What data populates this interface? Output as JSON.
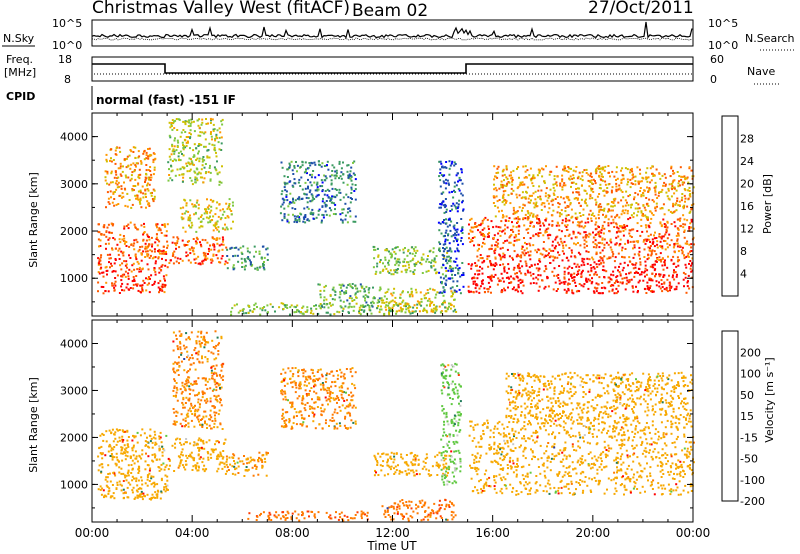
{
  "header": {
    "title": "Christmas Valley West (fitACF)",
    "beam": "Beam 02",
    "date": "27/Oct/2011"
  },
  "top_panels": {
    "nsky_label": "N.Sky",
    "nsky_ticks": [
      "10^5",
      "10^0"
    ],
    "nsearch_label": "N.Search",
    "nsearch_ticks": [
      "10^5",
      "10^0"
    ],
    "freq_label_1": "Freq.",
    "freq_label_2": "[MHz]",
    "freq_ticks": [
      "18",
      "8"
    ],
    "nave_label": "Nave",
    "nave_ticks": [
      "60",
      "0"
    ],
    "cpid_label": "CPID",
    "mode_text": "normal (fast) -151 IF"
  },
  "chart_data": [
    {
      "type": "heatmap",
      "name": "power",
      "ylabel": "Slant Range [km]",
      "ylim": [
        200,
        4500
      ],
      "y_ticks": [
        "1000",
        "2000",
        "3000",
        "4000"
      ],
      "colorbar_label": "Power [dB]",
      "colorbar_ticks": [
        "28",
        "24",
        "20",
        "16",
        "12",
        "8",
        "4"
      ],
      "colorbar_colors": [
        "#ff0000",
        "#ff5a00",
        "#ff9a00",
        "#cfc000",
        "#7ec840",
        "#3a9a60",
        "#1d4fa8",
        "#0000ff"
      ],
      "blobs": [
        {
          "x": [
            0.2,
            3.0
          ],
          "y": [
            700,
            1300
          ],
          "v": 28
        },
        {
          "x": [
            0.2,
            3.0
          ],
          "y": [
            1300,
            2200
          ],
          "v": 26
        },
        {
          "x": [
            0.5,
            2.5
          ],
          "y": [
            2500,
            3800
          ],
          "v": 22
        },
        {
          "x": [
            3.0,
            5.4
          ],
          "y": [
            1300,
            1900
          ],
          "v": 26
        },
        {
          "x": [
            3.5,
            5.6
          ],
          "y": [
            2000,
            2700
          ],
          "v": 18
        },
        {
          "x": [
            3.0,
            5.2
          ],
          "y": [
            3000,
            4400
          ],
          "v": 16
        },
        {
          "x": [
            5.3,
            7.0
          ],
          "y": [
            1200,
            1700
          ],
          "v": 10
        },
        {
          "x": [
            7.5,
            10.5
          ],
          "y": [
            2200,
            3500
          ],
          "v": 8
        },
        {
          "x": [
            9.0,
            11.5
          ],
          "y": [
            400,
            900
          ],
          "v": 12
        },
        {
          "x": [
            11.2,
            14.3
          ],
          "y": [
            1100,
            1700
          ],
          "v": 14
        },
        {
          "x": [
            11.5,
            14.5
          ],
          "y": [
            300,
            800
          ],
          "v": 18
        },
        {
          "x": [
            5.5,
            14.5
          ],
          "y": [
            250,
            500
          ],
          "v": 14
        },
        {
          "x": [
            13.8,
            14.8
          ],
          "y": [
            700,
            3500
          ],
          "v": 6
        },
        {
          "x": [
            15.0,
            24.0
          ],
          "y": [
            700,
            1400
          ],
          "v": 30
        },
        {
          "x": [
            15.0,
            24.0
          ],
          "y": [
            1400,
            2300
          ],
          "v": 26
        },
        {
          "x": [
            16.0,
            24.0
          ],
          "y": [
            2300,
            3400
          ],
          "v": 22
        }
      ]
    },
    {
      "type": "heatmap",
      "name": "velocity",
      "xlabel": "Time UT",
      "ylabel": "Slant Range [km]",
      "xlim": [
        0,
        24
      ],
      "x_ticks": [
        "00:00",
        "04:00",
        "08:00",
        "12:00",
        "16:00",
        "20:00",
        "00:00"
      ],
      "ylim": [
        200,
        4500
      ],
      "y_ticks": [
        "1000",
        "2000",
        "3000",
        "4000"
      ],
      "colorbar_label": "Velocity [m s⁻¹]",
      "colorbar_ticks": [
        "200",
        "100",
        "50",
        "15",
        "-15",
        "-50",
        "-100",
        "-200"
      ],
      "colorbar_colors": [
        "#2a3fa8",
        "#1f7a5a",
        "#5fc840",
        "#c8c8c8",
        "#f7a800",
        "#ff7a00",
        "#ff3a00",
        "#ff0000"
      ],
      "blobs": [
        {
          "x": [
            0.2,
            3.0
          ],
          "y": [
            700,
            2200
          ],
          "v": 0
        },
        {
          "x": [
            3.0,
            5.4
          ],
          "y": [
            1300,
            2000
          ],
          "v": 0
        },
        {
          "x": [
            3.2,
            5.2
          ],
          "y": [
            2200,
            4300
          ],
          "v": -20
        },
        {
          "x": [
            5.3,
            7.0
          ],
          "y": [
            1200,
            1700
          ],
          "v": -10
        },
        {
          "x": [
            7.5,
            10.5
          ],
          "y": [
            2200,
            3500
          ],
          "v": -20
        },
        {
          "x": [
            11.2,
            14.3
          ],
          "y": [
            1200,
            1700
          ],
          "v": 0
        },
        {
          "x": [
            11.5,
            14.5
          ],
          "y": [
            250,
            700
          ],
          "v": -40
        },
        {
          "x": [
            6.0,
            11.0
          ],
          "y": [
            250,
            450
          ],
          "v": -40
        },
        {
          "x": [
            13.9,
            14.7
          ],
          "y": [
            1000,
            3600
          ],
          "v": 60
        },
        {
          "x": [
            15.0,
            24.0
          ],
          "y": [
            800,
            2400
          ],
          "v": 0
        },
        {
          "x": [
            16.5,
            24.0
          ],
          "y": [
            2400,
            3400
          ],
          "v": 0
        }
      ]
    }
  ]
}
